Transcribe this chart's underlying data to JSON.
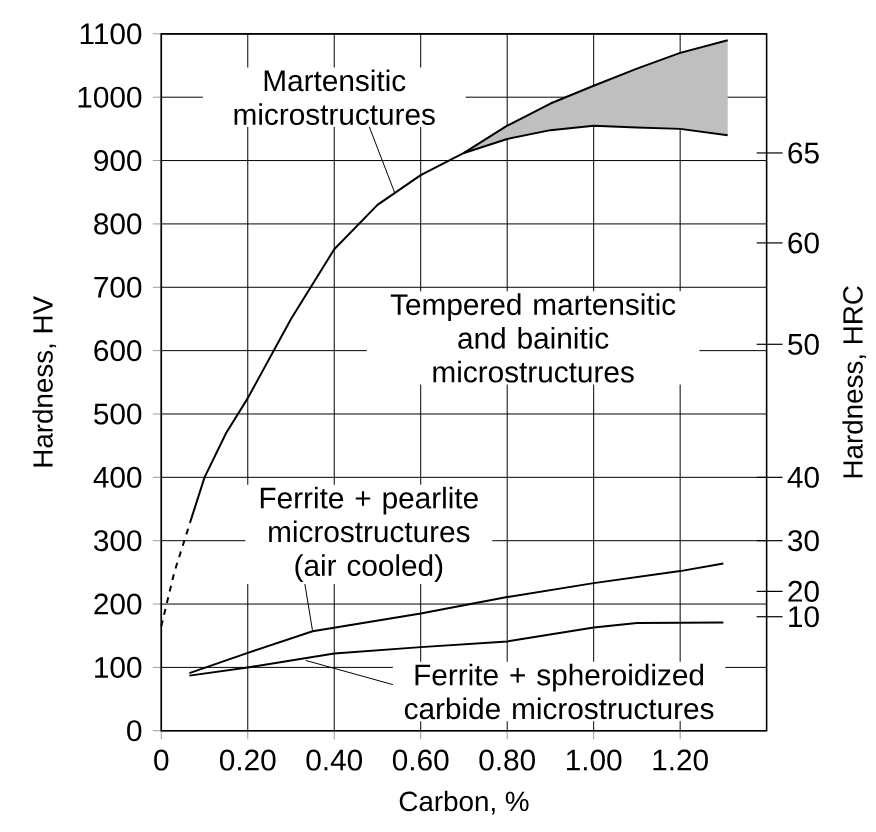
{
  "chart_data": {
    "type": "line",
    "xlabel": "Carbon, %",
    "ylabel": "Hardness, HV",
    "y2label": "Hardness, HRC",
    "xlim": [
      0,
      1.4
    ],
    "ylim": [
      0,
      1100
    ],
    "xticks": [
      0,
      {
        "value": 0.2,
        "label": "0.20"
      },
      {
        "value": 0.4,
        "label": "0.40"
      },
      {
        "value": 0.6,
        "label": "0.60"
      },
      {
        "value": 0.8,
        "label": "0.80"
      },
      {
        "value": 1.0,
        "label": "1.00"
      },
      {
        "value": 1.2,
        "label": "1.20"
      }
    ],
    "yticks": [
      0,
      100,
      200,
      300,
      400,
      500,
      600,
      700,
      800,
      900,
      1000,
      1100
    ],
    "grid": true,
    "marker": "none",
    "series": [
      {
        "color": "#000000",
        "line_style": "dashed",
        "x": [
          0,
          0.03,
          0.07
        ],
        "values": [
          165,
          250,
          336
        ]
      },
      {
        "color": "#000000",
        "line_style": "solid",
        "x": [
          0.07,
          0.1,
          0.15,
          0.2,
          0.3,
          0.4,
          0.5,
          0.6,
          0.7,
          0.8,
          0.9,
          1.0,
          1.1,
          1.2,
          1.31
        ],
        "values": [
          336,
          400,
          470,
          525,
          650,
          760,
          830,
          877,
          912,
          955,
          990,
          1018,
          1045,
          1070,
          1090
        ],
        "lower": [
          null,
          null,
          null,
          null,
          null,
          null,
          null,
          null,
          912,
          934,
          948,
          955,
          952,
          950,
          940
        ],
        "upper": [
          null,
          null,
          null,
          null,
          null,
          null,
          null,
          null,
          912,
          955,
          990,
          1018,
          1045,
          1070,
          1090
        ]
      },
      {
        "color": "#000000",
        "line_style": "solid",
        "x": [
          0.7,
          0.8,
          0.9,
          1.0,
          1.1,
          1.2,
          1.31
        ],
        "values": [
          912,
          934,
          948,
          955,
          952,
          950,
          940
        ]
      },
      {
        "color": "#000000",
        "line_style": "solid",
        "x": [
          0.065,
          0.2,
          0.35,
          0.6,
          0.8,
          1.0,
          1.2,
          1.3
        ],
        "values": [
          91,
          123,
          157,
          185,
          211,
          233,
          252,
          264
        ]
      },
      {
        "color": "#000000",
        "line_style": "solid",
        "x": [
          0.065,
          0.2,
          0.4,
          0.6,
          0.8,
          1.0,
          1.1,
          1.3
        ],
        "values": [
          87,
          100,
          122,
          132,
          141,
          163,
          170,
          171
        ]
      }
    ],
    "annotations": [
      {
        "text": "Martensitic microstructures",
        "x": 0.54,
        "y": 849
      },
      "Tempered martensitic and bainitic microstructures",
      {
        "text": "Ferrite + pearlite microstructures (air cooled)",
        "x": 0.35,
        "y": 157
      },
      {
        "text": "Ferrite + spheroidized carbide microstructures",
        "x": 0.334,
        "y": 111
      },
      "10",
      "20",
      "30",
      "40",
      "50",
      "60",
      "65"
    ]
  }
}
